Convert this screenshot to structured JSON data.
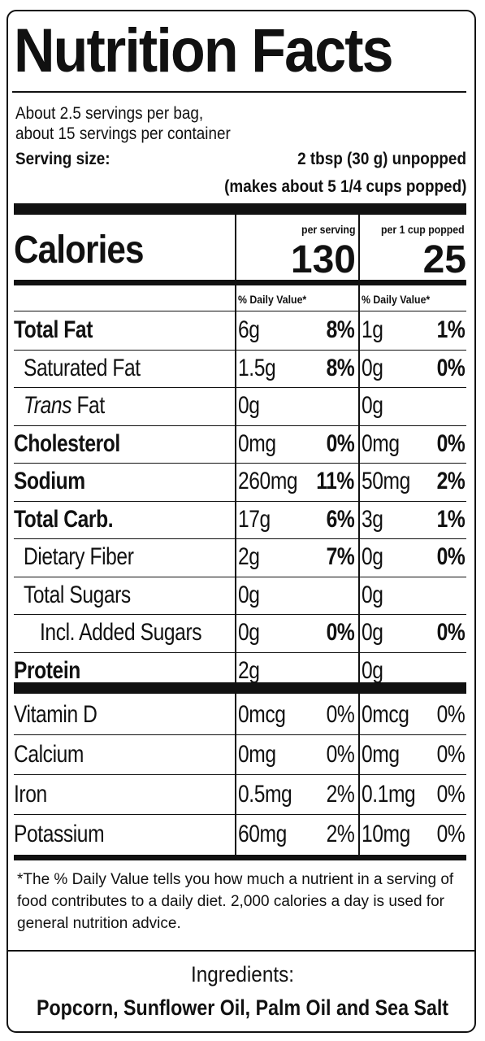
{
  "title": "Nutrition Facts",
  "servings": {
    "line1": "About 2.5 servings per bag,",
    "line2": "about 15 servings per container",
    "size_label": "Serving size:",
    "size_value": "2 tbsp (30 g) unpopped",
    "size_note": "(makes about 5 1/4 cups popped)"
  },
  "calories": {
    "label": "Calories",
    "col1_head": "per serving",
    "col2_head": "per 1 cup popped",
    "col1_value": "130",
    "col2_value": "25"
  },
  "dv_head": "% Daily Value*",
  "nutrients": [
    {
      "name": "Total Fat",
      "bold": true,
      "indent": 0,
      "a1": "6g",
      "p1": "8%",
      "a2": "1g",
      "p2": "1%"
    },
    {
      "name": "Saturated Fat",
      "bold": false,
      "indent": 1,
      "a1": "1.5g",
      "p1": "8%",
      "a2": "0g",
      "p2": "0%"
    },
    {
      "name": "Trans Fat",
      "bold": false,
      "indent": 1,
      "a1": "0g",
      "p1": "",
      "a2": "0g",
      "p2": ""
    },
    {
      "name": "Cholesterol",
      "bold": true,
      "indent": 0,
      "a1": "0mg",
      "p1": "0%",
      "a2": "0mg",
      "p2": "0%"
    },
    {
      "name": "Sodium",
      "bold": true,
      "indent": 0,
      "a1": "260mg",
      "p1": "11%",
      "a2": "50mg",
      "p2": "2%"
    },
    {
      "name": "Total Carb.",
      "bold": true,
      "indent": 0,
      "a1": "17g",
      "p1": "6%",
      "a2": "3g",
      "p2": "1%"
    },
    {
      "name": "Dietary Fiber",
      "bold": false,
      "indent": 1,
      "a1": "2g",
      "p1": "7%",
      "a2": "0g",
      "p2": "0%"
    },
    {
      "name": "Total Sugars",
      "bold": false,
      "indent": 1,
      "a1": "0g",
      "p1": "",
      "a2": "0g",
      "p2": ""
    },
    {
      "name": "Incl. Added Sugars",
      "bold": false,
      "indent": 2,
      "a1": "0g",
      "p1": "0%",
      "a2": "0g",
      "p2": "0%"
    },
    {
      "name": "Protein",
      "bold": true,
      "indent": 0,
      "a1": "2g",
      "p1": "",
      "a2": "0g",
      "p2": ""
    }
  ],
  "vitamins": [
    {
      "name": "Vitamin D",
      "a1": "0mcg",
      "p1": "0%",
      "a2": "0mcg",
      "p2": "0%"
    },
    {
      "name": "Calcium",
      "a1": "0mg",
      "p1": "0%",
      "a2": "0mg",
      "p2": "0%"
    },
    {
      "name": "Iron",
      "a1": "0.5mg",
      "p1": "2%",
      "a2": "0.1mg",
      "p2": "0%"
    },
    {
      "name": "Potassium",
      "a1": "60mg",
      "p1": "2%",
      "a2": "10mg",
      "p2": "0%"
    }
  ],
  "footnote": "*The % Daily Value tells you how much a nutrient in a serving of food contributes to a daily diet. 2,000 calories a day is used for general nutrition advice.",
  "ingredients": {
    "title": "Ingredients:",
    "list": "Popcorn, Sunflower Oil, Palm Oil and Sea Salt"
  }
}
